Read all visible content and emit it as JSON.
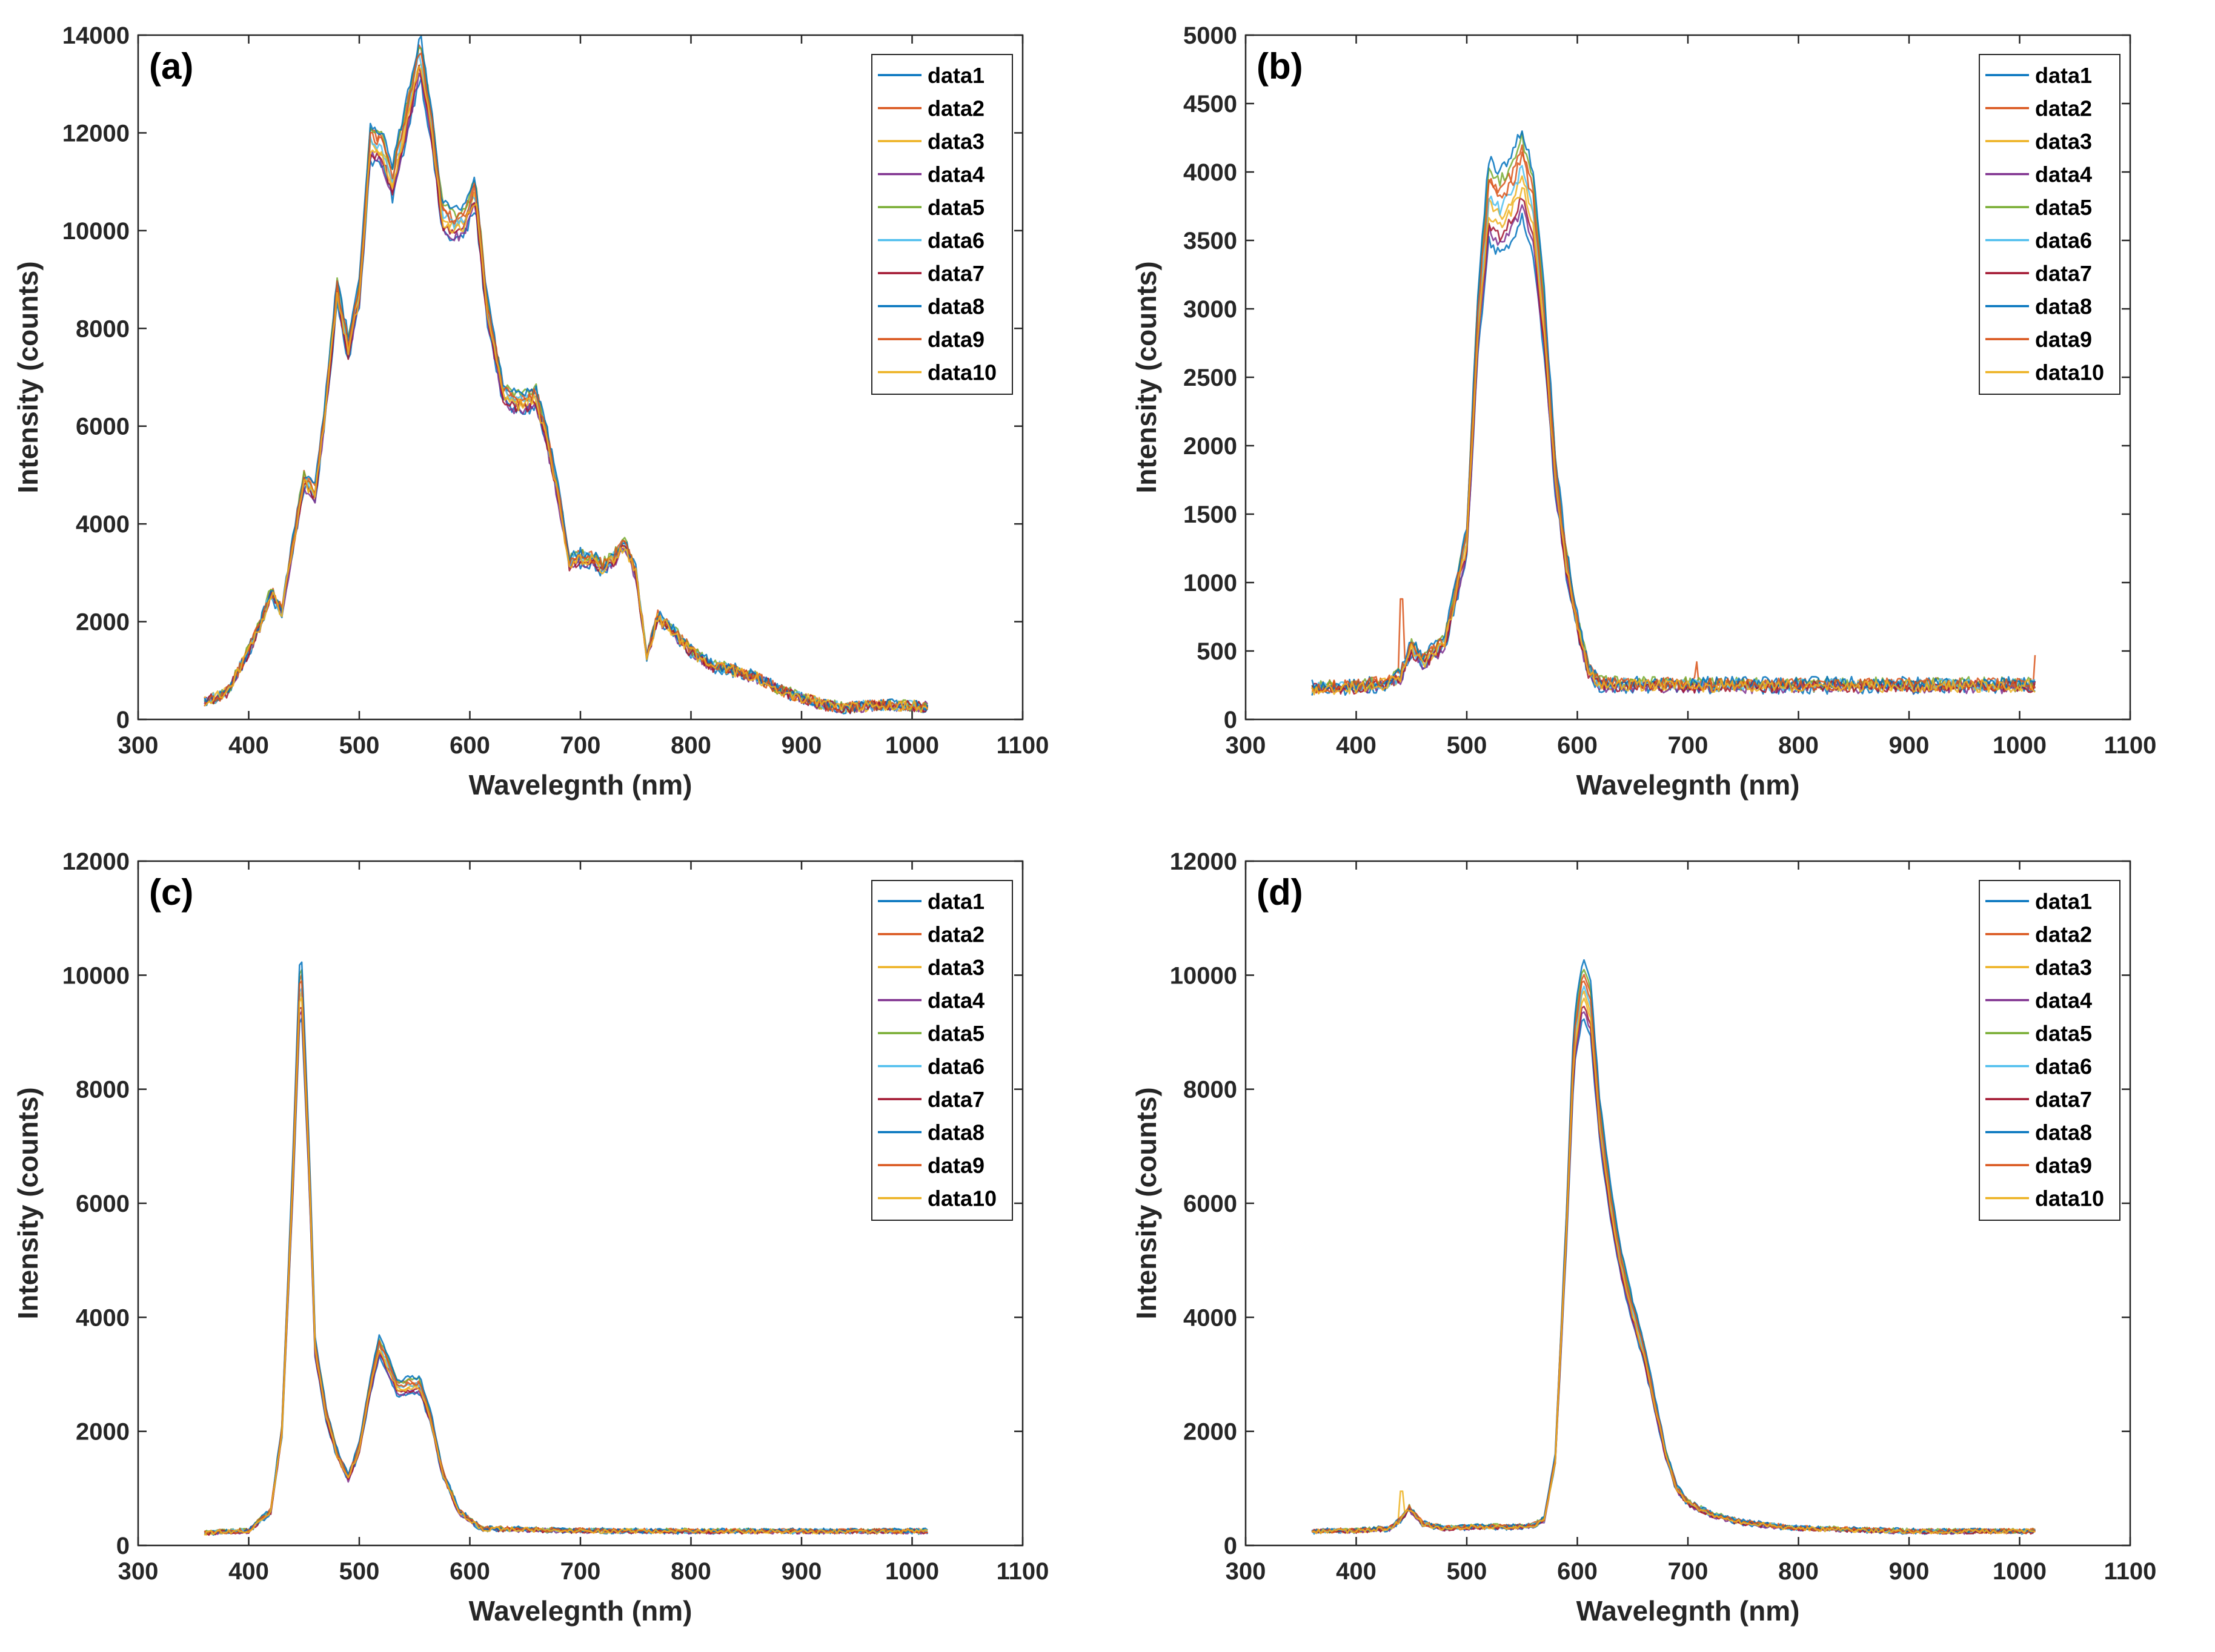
{
  "series_names": [
    "data1",
    "data2",
    "data3",
    "data4",
    "data5",
    "data6",
    "data7",
    "data8",
    "data9",
    "data10"
  ],
  "series_colors": [
    "#0072BD",
    "#D95319",
    "#EDB120",
    "#7E2F8E",
    "#77AC30",
    "#4DBEEE",
    "#A2142F",
    "#0072BD",
    "#D95319",
    "#EDB120"
  ],
  "chart_data": [
    {
      "type": "line",
      "panel": "(a)",
      "xlabel": "Wavelegnth (nm)",
      "ylabel": "Intensity (counts)",
      "xlim": [
        300,
        1100
      ],
      "ylim": [
        0,
        14000
      ],
      "xticks": [
        300,
        400,
        500,
        600,
        700,
        800,
        900,
        1000,
        1100
      ],
      "yticks": [
        0,
        2000,
        4000,
        6000,
        8000,
        10000,
        12000,
        14000
      ],
      "legend_position": "top-right",
      "noise": 120,
      "spread": 0.03,
      "x": [
        360,
        380,
        400,
        410,
        420,
        430,
        440,
        450,
        460,
        470,
        480,
        490,
        500,
        510,
        520,
        530,
        540,
        555,
        565,
        575,
        585,
        595,
        605,
        615,
        630,
        640,
        650,
        660,
        670,
        680,
        690,
        700,
        710,
        720,
        730,
        740,
        750,
        760,
        770,
        780,
        800,
        820,
        840,
        860,
        880,
        900,
        920,
        940,
        960,
        980,
        1000,
        1015
      ],
      "y": [
        350,
        550,
        1400,
        1900,
        2600,
        2200,
        3600,
        4900,
        4600,
        6500,
        8800,
        7600,
        8700,
        11800,
        11700,
        11000,
        12000,
        13600,
        12200,
        10300,
        10100,
        10200,
        10800,
        8500,
        6700,
        6500,
        6500,
        6600,
        5700,
        4600,
        3200,
        3300,
        3300,
        3100,
        3300,
        3600,
        3000,
        1300,
        2100,
        1900,
        1400,
        1100,
        1000,
        850,
        600,
        450,
        300,
        240,
        280,
        300,
        280,
        260
      ]
    },
    {
      "type": "line",
      "panel": "(b)",
      "xlabel": "Wavelegnth (nm)",
      "ylabel": "Intensity (counts)",
      "xlim": [
        300,
        1100
      ],
      "ylim": [
        0,
        5000
      ],
      "xticks": [
        300,
        400,
        500,
        600,
        700,
        800,
        900,
        1000,
        1100
      ],
      "yticks": [
        0,
        500,
        1000,
        1500,
        2000,
        2500,
        3000,
        3500,
        4000,
        4500,
        5000
      ],
      "legend_position": "top-right",
      "noise": 45,
      "spread": 0.08,
      "x": [
        360,
        400,
        430,
        440,
        450,
        460,
        480,
        500,
        510,
        520,
        530,
        540,
        550,
        560,
        570,
        580,
        590,
        600,
        610,
        620,
        700,
        800,
        900,
        1000,
        1015
      ],
      "y": [
        230,
        240,
        270,
        320,
        520,
        420,
        560,
        1300,
        2900,
        3800,
        3700,
        3800,
        4000,
        3700,
        2900,
        1800,
        1150,
        700,
        360,
        260,
        250,
        250,
        250,
        250,
        250
      ],
      "spikes": [
        [
          441,
          880
        ],
        [
          708,
          420
        ],
        [
          1015,
          470
        ]
      ]
    },
    {
      "type": "line",
      "panel": "(c)",
      "xlabel": "Wavelegnth (nm)",
      "ylabel": "Intensity (counts)",
      "xlim": [
        300,
        1100
      ],
      "ylim": [
        0,
        12000
      ],
      "xticks": [
        300,
        400,
        500,
        600,
        700,
        800,
        900,
        1000,
        1100
      ],
      "yticks": [
        0,
        2000,
        4000,
        6000,
        8000,
        10000,
        12000
      ],
      "legend_position": "top-right",
      "noise": 40,
      "spread": 0.05,
      "x": [
        360,
        400,
        420,
        430,
        440,
        447,
        455,
        460,
        470,
        480,
        490,
        500,
        510,
        518,
        525,
        535,
        545,
        555,
        565,
        575,
        590,
        610,
        650,
        700,
        800,
        900,
        1000,
        1015
      ],
      "y": [
        220,
        260,
        600,
        2000,
        6500,
        10200,
        6500,
        3500,
        2300,
        1600,
        1200,
        1700,
        2800,
        3500,
        3200,
        2750,
        2800,
        2800,
        2200,
        1300,
        600,
        300,
        280,
        260,
        250,
        250,
        250,
        250
      ]
    },
    {
      "type": "line",
      "panel": "(d)",
      "xlabel": "Wavelegnth (nm)",
      "ylabel": "Intensity (counts)",
      "xlim": [
        300,
        1100
      ],
      "ylim": [
        0,
        12000
      ],
      "xticks": [
        300,
        400,
        500,
        600,
        700,
        800,
        900,
        1000,
        1100
      ],
      "yticks": [
        0,
        2000,
        4000,
        6000,
        8000,
        10000,
        12000
      ],
      "legend_position": "top-right",
      "noise": 40,
      "spread": 0.05,
      "x": [
        360,
        400,
        430,
        440,
        448,
        460,
        480,
        500,
        520,
        540,
        560,
        570,
        580,
        590,
        597,
        605,
        612,
        620,
        630,
        640,
        650,
        660,
        670,
        680,
        690,
        700,
        720,
        750,
        800,
        900,
        1000,
        1015
      ],
      "y": [
        250,
        260,
        300,
        450,
        650,
        380,
        300,
        320,
        330,
        320,
        350,
        450,
        1500,
        5500,
        8800,
        9800,
        9400,
        7500,
        6000,
        4900,
        4100,
        3400,
        2500,
        1600,
        1000,
        750,
        550,
        400,
        300,
        250,
        250,
        250
      ],
      "spikes": [
        [
          441,
          950
        ]
      ]
    }
  ]
}
